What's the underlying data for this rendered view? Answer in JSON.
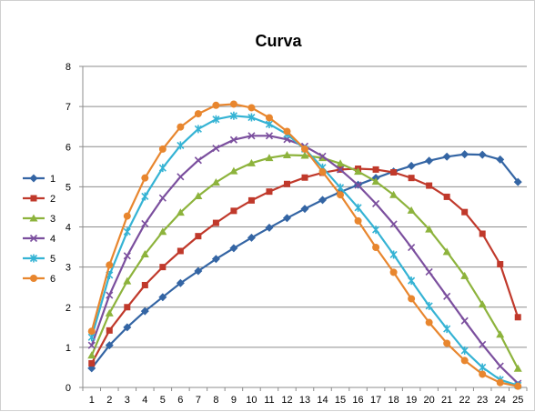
{
  "chart_data": {
    "type": "line",
    "title": "Curva",
    "xlabel": "",
    "ylabel": "",
    "ylim": [
      0,
      8
    ],
    "yticks": [
      "0",
      "1",
      "2",
      "3",
      "4",
      "5",
      "6",
      "7",
      "8"
    ],
    "categories": [
      "1",
      "2",
      "3",
      "4",
      "5",
      "6",
      "7",
      "8",
      "9",
      "10",
      "11",
      "12",
      "13",
      "14",
      "15",
      "16",
      "17",
      "18",
      "19",
      "20",
      "21",
      "22",
      "23",
      "24",
      "25"
    ],
    "grid": "horizontal",
    "legend_position": "left",
    "series": [
      {
        "name": "1",
        "color": "#3465A4",
        "marker": "diamond",
        "values": [
          0.48,
          1.05,
          1.5,
          1.9,
          2.25,
          2.6,
          2.9,
          3.2,
          3.47,
          3.73,
          3.98,
          4.22,
          4.45,
          4.67,
          4.87,
          5.05,
          5.22,
          5.38,
          5.52,
          5.65,
          5.75,
          5.81,
          5.8,
          5.68,
          5.12
        ]
      },
      {
        "name": "2",
        "color": "#C0392B",
        "marker": "square",
        "values": [
          0.6,
          1.42,
          2.0,
          2.55,
          3.0,
          3.4,
          3.77,
          4.1,
          4.4,
          4.66,
          4.88,
          5.07,
          5.23,
          5.35,
          5.43,
          5.45,
          5.43,
          5.36,
          5.22,
          5.03,
          4.75,
          4.37,
          3.83,
          3.07,
          1.75
        ]
      },
      {
        "name": "3",
        "color": "#8DB33C",
        "marker": "triangle",
        "values": [
          0.8,
          1.85,
          2.65,
          3.32,
          3.88,
          4.36,
          4.77,
          5.11,
          5.39,
          5.59,
          5.72,
          5.79,
          5.78,
          5.72,
          5.58,
          5.38,
          5.13,
          4.8,
          4.41,
          3.94,
          3.38,
          2.78,
          2.07,
          1.32,
          0.47
        ]
      },
      {
        "name": "4",
        "color": "#7B4F9E",
        "marker": "x",
        "values": [
          1.05,
          2.3,
          3.28,
          4.08,
          4.72,
          5.25,
          5.66,
          5.96,
          6.17,
          6.27,
          6.27,
          6.18,
          6.01,
          5.76,
          5.43,
          5.04,
          4.58,
          4.07,
          3.49,
          2.88,
          2.27,
          1.66,
          1.07,
          0.53,
          0.1
        ]
      },
      {
        "name": "5",
        "color": "#35B3D4",
        "marker": "star",
        "values": [
          1.25,
          2.8,
          3.88,
          4.76,
          5.47,
          6.03,
          6.44,
          6.68,
          6.77,
          6.73,
          6.56,
          6.31,
          5.94,
          5.48,
          4.98,
          4.48,
          3.93,
          3.31,
          2.66,
          2.03,
          1.46,
          0.92,
          0.5,
          0.19,
          0.05
        ]
      },
      {
        "name": "6",
        "color": "#E8862E",
        "marker": "circle",
        "values": [
          1.4,
          3.05,
          4.27,
          5.22,
          5.94,
          6.49,
          6.82,
          7.03,
          7.06,
          6.97,
          6.72,
          6.38,
          5.94,
          5.37,
          4.8,
          4.15,
          3.49,
          2.87,
          2.21,
          1.62,
          1.1,
          0.67,
          0.33,
          0.12,
          0.03
        ]
      }
    ]
  }
}
